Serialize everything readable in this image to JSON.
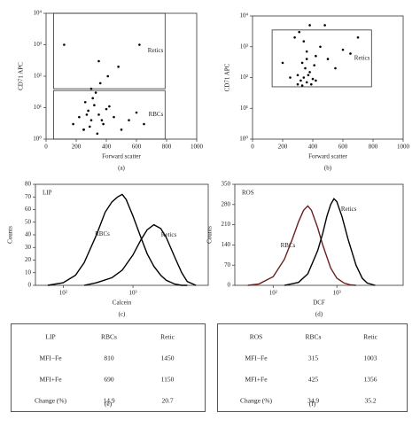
{
  "chart_data": [
    {
      "type": "scatter",
      "panel": "(a)",
      "x_label": "Forward scatter",
      "y_label": "CD71 APC",
      "color": "#000000",
      "x": [
        180,
        220,
        250,
        280,
        300,
        320,
        350,
        380,
        400,
        450,
        500,
        550,
        600,
        650,
        260,
        310,
        340,
        420,
        290,
        370,
        330,
        270,
        360,
        410,
        480,
        120,
        620,
        350,
        300,
        250
      ],
      "y": [
        3,
        5,
        2,
        8,
        4,
        12,
        6,
        3,
        9,
        5,
        2,
        4,
        7,
        3,
        15,
        20,
        1.5,
        11,
        2.5,
        4,
        30,
        6,
        60,
        100,
        200,
        1000,
        1000,
        300,
        40,
        2
      ],
      "xlim": [
        0,
        1000
      ],
      "xticks": [
        0,
        200,
        400,
        600,
        800,
        1000
      ],
      "y_log": true,
      "ylim": [
        1,
        10000
      ],
      "yticks": [
        {
          "value": 1,
          "label": "10⁰"
        },
        {
          "value": 10,
          "label": "10¹"
        },
        {
          "value": 100,
          "label": "10²"
        },
        {
          "value": 1000,
          "label": "10³"
        },
        {
          "value": 10000,
          "label": "10⁴"
        }
      ],
      "gates": [
        {
          "label": "Retics",
          "x": [
            50,
            790
          ],
          "y": [
            40,
            10000
          ]
        },
        {
          "label": "RBCs",
          "x": [
            50,
            790
          ],
          "y": [
            1,
            35
          ]
        }
      ]
    },
    {
      "type": "scatter",
      "panel": "(b)",
      "x_label": "Forward scatter",
      "y_label": "CD71 APC",
      "color": "#000000",
      "x": [
        300,
        320,
        340,
        360,
        380,
        400,
        350,
        330,
        370,
        420,
        450,
        500,
        550,
        600,
        280,
        310,
        390,
        410,
        360,
        340,
        250,
        200,
        650,
        700,
        480,
        380,
        330,
        300,
        420,
        360
      ],
      "y": [
        60,
        80,
        100,
        70,
        150,
        90,
        200,
        300,
        120,
        500,
        1000,
        400,
        200,
        800,
        2000,
        3000,
        60,
        250,
        700,
        1500,
        100,
        300,
        600,
        2000,
        5000,
        5000,
        55,
        120,
        80,
        400
      ],
      "xlim": [
        0,
        1000
      ],
      "xticks": [
        0,
        200,
        400,
        600,
        800,
        1000
      ],
      "y_log": true,
      "ylim": [
        1,
        10000
      ],
      "yticks": [
        {
          "value": 1,
          "label": "10⁰"
        },
        {
          "value": 10,
          "label": "10¹"
        },
        {
          "value": 100,
          "label": "10²"
        },
        {
          "value": 1000,
          "label": "10³"
        },
        {
          "value": 10000,
          "label": "10⁴"
        }
      ],
      "gates": [
        {
          "label": "Retics",
          "x": [
            130,
            790
          ],
          "y": [
            50,
            3500
          ]
        }
      ]
    },
    {
      "type": "line",
      "panel": "(c)",
      "title": "LIP",
      "x_label": "Calcein",
      "y_label": "Counts",
      "x_log": true,
      "xlim": [
        40,
        12000
      ],
      "xticks": [
        {
          "value": 100,
          "label": "10²"
        },
        {
          "value": 1000,
          "label": "10³"
        }
      ],
      "ylim": [
        0,
        80
      ],
      "yticks": [
        0,
        10,
        20,
        30,
        40,
        50,
        60,
        70,
        80
      ],
      "series": [
        {
          "name": "RBCs",
          "color": "#000000",
          "x": [
            60,
            100,
            150,
            200,
            300,
            400,
            500,
            600,
            700,
            800,
            1000,
            1300,
            1600,
            2000,
            2500,
            3000,
            4000,
            5000,
            6000
          ],
          "values": [
            0,
            2,
            8,
            18,
            40,
            58,
            66,
            70,
            72,
            68,
            55,
            38,
            25,
            15,
            8,
            4,
            1,
            0,
            0
          ]
        },
        {
          "name": "Retics",
          "color": "#000000",
          "x": [
            200,
            300,
            500,
            700,
            1000,
            1300,
            1600,
            2000,
            2500,
            3000,
            4000,
            5000,
            6000,
            8000
          ],
          "values": [
            0,
            2,
            6,
            12,
            24,
            36,
            44,
            48,
            45,
            38,
            22,
            10,
            3,
            0
          ]
        }
      ]
    },
    {
      "type": "line",
      "panel": "(d)",
      "title": "ROS",
      "x_label": "DCF",
      "y_label": "Counts",
      "x_log": true,
      "xlim": [
        25,
        11000
      ],
      "xticks": [
        {
          "value": 100,
          "label": "10²"
        },
        {
          "value": 1000,
          "label": "10³"
        }
      ],
      "ylim": [
        0,
        350
      ],
      "yticks": [
        0,
        70,
        140,
        210,
        280,
        350
      ],
      "series": [
        {
          "name": "RBCs",
          "color": "#6b1f1f",
          "x": [
            40,
            60,
            100,
            150,
            200,
            250,
            300,
            350,
            400,
            500,
            600,
            800,
            1000,
            1300,
            1600,
            2000
          ],
          "values": [
            0,
            5,
            30,
            90,
            160,
            220,
            260,
            275,
            260,
            200,
            140,
            60,
            25,
            8,
            2,
            0
          ]
        },
        {
          "name": "Retics",
          "color": "#000000",
          "x": [
            150,
            250,
            350,
            500,
            600,
            700,
            800,
            900,
            1000,
            1200,
            1500,
            2000,
            2500,
            3000,
            4000
          ],
          "values": [
            0,
            10,
            40,
            120,
            180,
            240,
            280,
            300,
            290,
            240,
            160,
            70,
            25,
            8,
            0
          ]
        }
      ]
    }
  ],
  "tables": [
    {
      "panel": "(e)",
      "header": [
        "LIP",
        "RBCs",
        "Retic"
      ],
      "rows": [
        [
          "MFI−Fe",
          "810",
          "1450"
        ],
        [
          "MFI+Fe",
          "690",
          "1150"
        ],
        [
          "Change (%)",
          "14.9",
          "20.7"
        ]
      ]
    },
    {
      "panel": "(f)",
      "header": [
        "ROS",
        "RBCs",
        "Retic"
      ],
      "rows": [
        [
          "MFI−Fe",
          "315",
          "1003"
        ],
        [
          "MFI+Fe",
          "425",
          "1356"
        ],
        [
          "Change (%)",
          "34.9",
          "35.2"
        ]
      ]
    }
  ]
}
